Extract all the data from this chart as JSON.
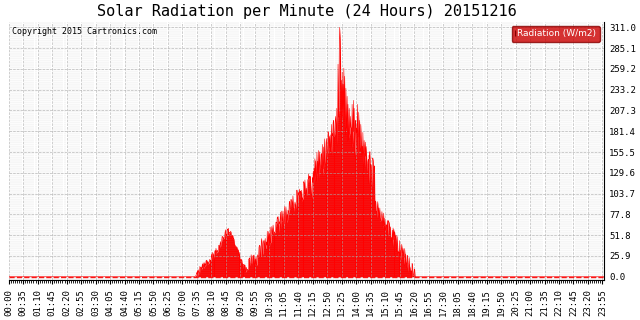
{
  "title": "Solar Radiation per Minute (24 Hours) 20151216",
  "copyright_text": "Copyright 2015 Cartronics.com",
  "legend_label": "Radiation (W/m2)",
  "background_color": "#ffffff",
  "line_color": "#ff0000",
  "fill_color": "#ff0000",
  "legend_box_color": "#cc0000",
  "legend_text_color": "#ffffff",
  "grid_color": "#aaaaaa",
  "title_fontsize": 11,
  "tick_fontsize": 6.5,
  "ylabel_values": [
    0.0,
    25.9,
    51.8,
    77.8,
    103.7,
    129.6,
    155.5,
    181.4,
    207.3,
    233.2,
    259.2,
    285.1,
    311.0
  ],
  "ymax": 318,
  "ymin": -4,
  "total_minutes": 1440,
  "x_label_step": 35,
  "seed": 99
}
